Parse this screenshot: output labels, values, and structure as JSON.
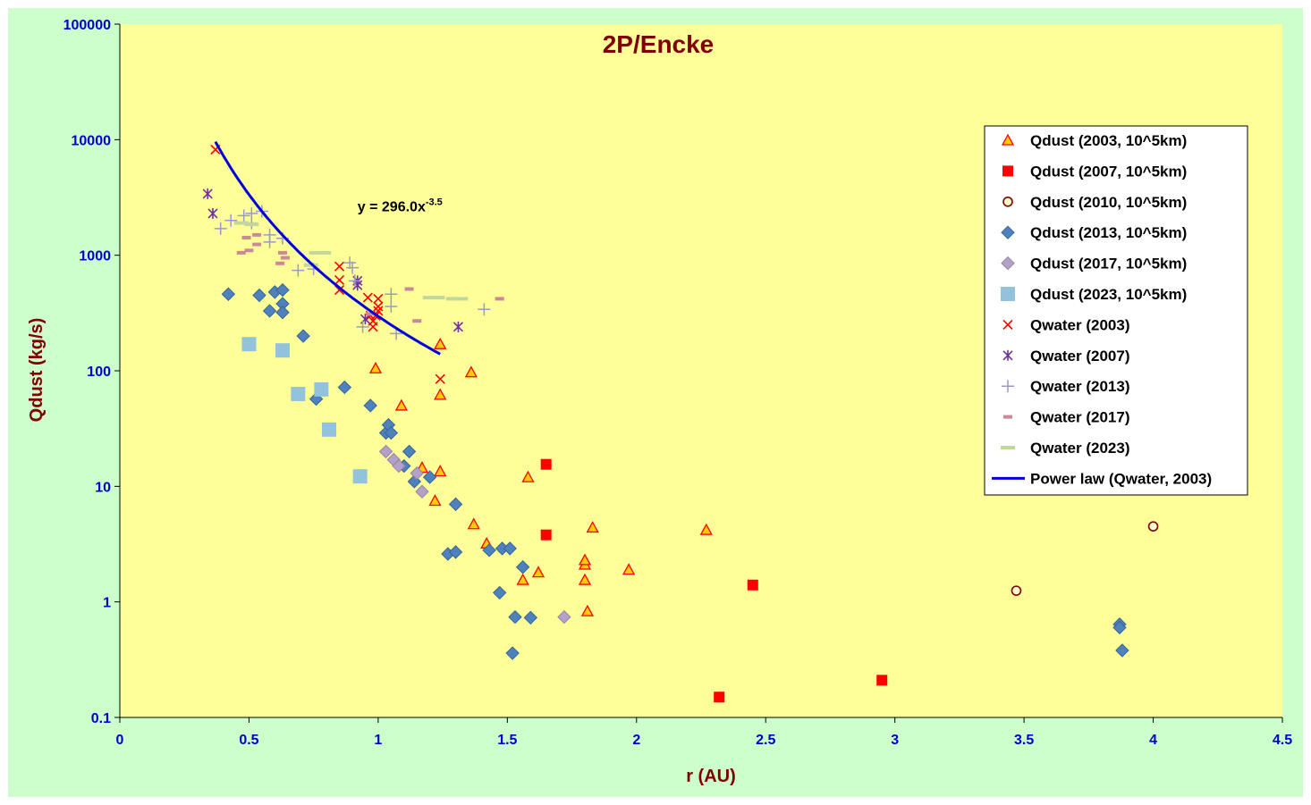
{
  "chart_data": {
    "type": "scatter",
    "title": "2P/Encke",
    "xlabel": "r (AU)",
    "ylabel": "Qdust (kg/s)",
    "xlim": [
      0,
      4.5
    ],
    "ylim": [
      0.1,
      100000
    ],
    "yscale": "log",
    "x_ticks": [
      "0",
      "0.5",
      "1",
      "1.5",
      "2",
      "2.5",
      "3",
      "3.5",
      "4",
      "4.5"
    ],
    "y_ticks": [
      "0.1",
      "1",
      "10",
      "100",
      "1000",
      "10000",
      "100000"
    ],
    "legend_position": "right",
    "equation": {
      "text": "y = 296.0x",
      "exponent": "-3.5",
      "x": 0.92,
      "y": 2400
    },
    "power_law": {
      "name": "Power law (Qwater, 2003)",
      "coefficient": 296.0,
      "exponent": -3.5,
      "x_range": [
        0.37,
        1.24
      ],
      "color": "#0000dd"
    },
    "series": [
      {
        "name": "Qdust (2003, 10^5km)",
        "marker": "triangle",
        "color": "#ff0000",
        "fill": "#ffcc00",
        "points": [
          [
            1.24,
            170
          ],
          [
            0.99,
            105
          ],
          [
            1.36,
            97
          ],
          [
            1.09,
            50
          ],
          [
            1.24,
            62
          ],
          [
            1.17,
            14.5
          ],
          [
            1.24,
            13.5
          ],
          [
            1.22,
            7.5
          ],
          [
            1.58,
            12
          ],
          [
            1.37,
            4.7
          ],
          [
            1.42,
            3.2
          ],
          [
            1.56,
            1.55
          ],
          [
            1.62,
            1.8
          ],
          [
            1.8,
            2.1
          ],
          [
            1.8,
            2.3
          ],
          [
            1.8,
            1.55
          ],
          [
            1.81,
            0.83
          ],
          [
            1.83,
            4.4
          ],
          [
            1.97,
            1.9
          ],
          [
            2.27,
            4.2
          ]
        ]
      },
      {
        "name": "Qdust (2007, 10^5km)",
        "marker": "square",
        "color": "#ff0000",
        "fill": "#ff0000",
        "points": [
          [
            1.65,
            15.5
          ],
          [
            1.65,
            3.8
          ],
          [
            2.32,
            0.15
          ],
          [
            2.45,
            1.4
          ],
          [
            2.95,
            0.21
          ]
        ]
      },
      {
        "name": "Qdust (2010, 10^5km)",
        "marker": "circle",
        "color": "#800000",
        "fill": "#ffffcc",
        "points": [
          [
            3.47,
            1.25
          ],
          [
            4.0,
            4.5
          ]
        ]
      },
      {
        "name": "Qdust (2013, 10^5km)",
        "marker": "diamond",
        "color": "#336699",
        "fill": "#4f81bd",
        "points": [
          [
            0.42,
            460
          ],
          [
            0.54,
            450
          ],
          [
            0.58,
            330
          ],
          [
            0.6,
            480
          ],
          [
            0.63,
            500
          ],
          [
            0.63,
            380
          ],
          [
            0.63,
            320
          ],
          [
            0.71,
            200
          ],
          [
            0.76,
            57
          ],
          [
            0.87,
            72
          ],
          [
            0.97,
            50
          ],
          [
            1.03,
            29
          ],
          [
            1.04,
            34
          ],
          [
            1.05,
            29
          ],
          [
            1.1,
            15
          ],
          [
            1.12,
            20
          ],
          [
            1.14,
            11
          ],
          [
            1.2,
            12
          ],
          [
            1.27,
            2.6
          ],
          [
            1.3,
            2.7
          ],
          [
            1.3,
            7
          ],
          [
            1.43,
            2.8
          ],
          [
            1.48,
            2.9
          ],
          [
            1.51,
            2.9
          ],
          [
            1.47,
            1.2
          ],
          [
            1.52,
            0.36
          ],
          [
            1.53,
            0.74
          ],
          [
            1.56,
            2.0
          ],
          [
            1.59,
            0.73
          ],
          [
            3.87,
            0.64
          ],
          [
            3.87,
            0.6
          ],
          [
            3.88,
            0.38
          ]
        ]
      },
      {
        "name": "Qdust (2017, 10^5km)",
        "marker": "diamond",
        "color": "#9980aa",
        "fill": "#b3a2c7",
        "points": [
          [
            1.03,
            20
          ],
          [
            1.06,
            17
          ],
          [
            1.08,
            15
          ],
          [
            1.15,
            13
          ],
          [
            1.17,
            9
          ],
          [
            1.72,
            0.74
          ]
        ]
      },
      {
        "name": "Qdust (2023, 10^5km)",
        "marker": "square-lg",
        "color": "#93c2dd",
        "fill": "#93c2dd",
        "points": [
          [
            0.5,
            170
          ],
          [
            0.63,
            150
          ],
          [
            0.69,
            63
          ],
          [
            0.78,
            69
          ],
          [
            0.81,
            31
          ],
          [
            0.93,
            12.2
          ]
        ]
      },
      {
        "name": "Qwater (2003)",
        "marker": "x",
        "color": "#ff0000",
        "points": [
          [
            0.37,
            8200
          ],
          [
            0.85,
            800
          ],
          [
            0.85,
            610
          ],
          [
            0.85,
            500
          ],
          [
            0.96,
            430
          ],
          [
            0.97,
            300
          ],
          [
            0.98,
            270
          ],
          [
            0.98,
            240
          ],
          [
            0.99,
            300
          ],
          [
            1.0,
            420
          ],
          [
            1.0,
            360
          ],
          [
            1.0,
            330
          ],
          [
            1.24,
            85
          ]
        ]
      },
      {
        "name": "Qwater (2007)",
        "marker": "star",
        "color": "#7030a0",
        "points": [
          [
            0.34,
            3400
          ],
          [
            0.36,
            2300
          ],
          [
            0.92,
            600
          ],
          [
            0.92,
            550
          ],
          [
            0.95,
            280
          ],
          [
            1.31,
            240
          ]
        ]
      },
      {
        "name": "Qwater (2013)",
        "marker": "plus",
        "color": "#9999cc",
        "points": [
          [
            0.39,
            1700
          ],
          [
            0.43,
            2000
          ],
          [
            0.48,
            2200
          ],
          [
            0.51,
            2300
          ],
          [
            0.51,
            1900
          ],
          [
            0.55,
            2400
          ],
          [
            0.58,
            1500
          ],
          [
            0.58,
            1300
          ],
          [
            0.63,
            1400
          ],
          [
            0.69,
            740
          ],
          [
            0.75,
            760
          ],
          [
            0.89,
            860
          ],
          [
            0.9,
            780
          ],
          [
            0.91,
            600
          ],
          [
            0.94,
            240
          ],
          [
            1.05,
            460
          ],
          [
            1.05,
            360
          ],
          [
            1.07,
            210
          ],
          [
            1.41,
            340
          ]
        ]
      },
      {
        "name": "Qwater (2017)",
        "marker": "dash",
        "color": "#cc8899",
        "points": [
          [
            0.47,
            1050
          ],
          [
            0.49,
            1420
          ],
          [
            0.5,
            1100
          ],
          [
            0.53,
            1240
          ],
          [
            0.53,
            1500
          ],
          [
            0.62,
            850
          ],
          [
            0.63,
            1050
          ],
          [
            0.64,
            950
          ],
          [
            0.97,
            310
          ],
          [
            1.12,
            510
          ],
          [
            1.15,
            270
          ],
          [
            1.47,
            420
          ]
        ]
      },
      {
        "name": "Qwater (2023)",
        "marker": "dash-lg",
        "color": "#c4d79b",
        "points": [
          [
            0.47,
            1900
          ],
          [
            0.51,
            1850
          ],
          [
            0.74,
            820
          ],
          [
            0.76,
            1050
          ],
          [
            0.79,
            1050
          ],
          [
            1.2,
            430
          ],
          [
            1.23,
            430
          ],
          [
            1.29,
            420
          ],
          [
            1.32,
            420
          ]
        ]
      }
    ]
  }
}
